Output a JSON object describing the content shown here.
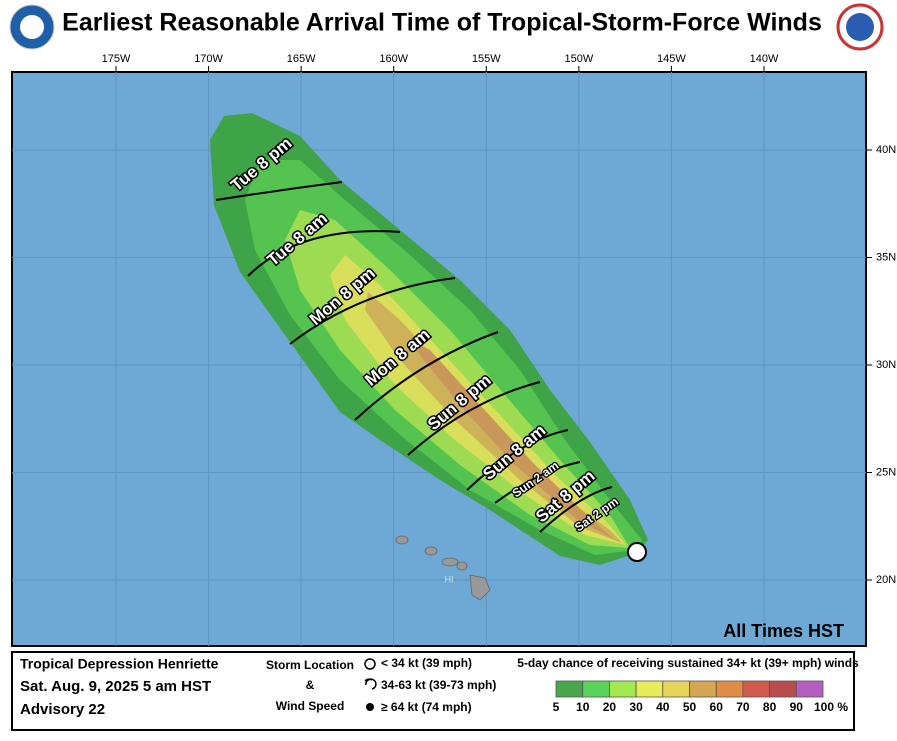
{
  "header": {
    "title": "Earliest Reasonable Arrival Time of Tropical-Storm-Force Winds"
  },
  "map": {
    "lon_labels": [
      "175W",
      "170W",
      "165W",
      "160W",
      "155W",
      "150W",
      "145W",
      "140W"
    ],
    "lat_labels": [
      "40N",
      "35N",
      "30N",
      "25N",
      "20N"
    ],
    "time_labels": [
      "Tue 8 pm",
      "Tue 8 am",
      "Mon 8 pm",
      "Mon 8 am",
      "Sun 8 pm",
      "Sun 8 am",
      "Sun 2 am",
      "Sat 8 pm",
      "Sat 2 pm"
    ],
    "island_label": "HI",
    "note": "All Times HST"
  },
  "footer": {
    "storm": "Tropical Depression Henriette",
    "date": "Sat. Aug. 9, 2025  5 am HST",
    "advisory": "Advisory 22",
    "storm_location": "Storm Location",
    "amp": "&",
    "wind_speed": "Wind Speed",
    "wind_legend": [
      "< 34 kt (39 mph)",
      "34-63 kt (39-73 mph)",
      "≥ 64 kt (74 mph)"
    ],
    "scale_title": "5-day chance of receiving sustained 34+ kt (39+ mph) winds",
    "scale_labels": [
      "5",
      "10",
      "20",
      "30",
      "40",
      "50",
      "60",
      "70",
      "80",
      "90",
      "100 %"
    ]
  }
}
